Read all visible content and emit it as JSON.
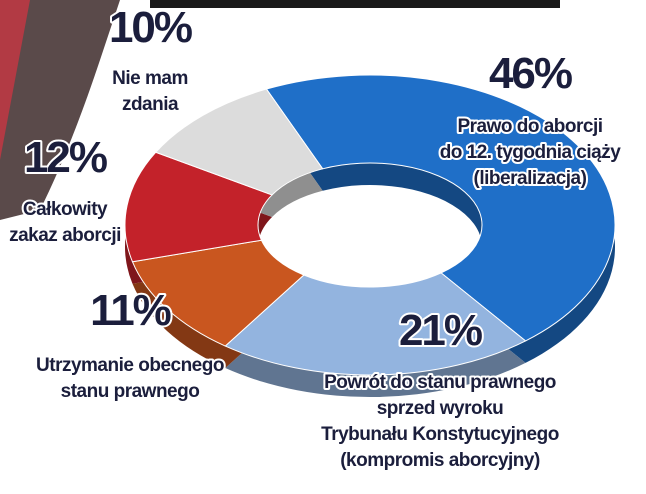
{
  "chart_data": {
    "type": "donut",
    "categories": [
      [
        "Prawo do aborcji",
        "do 12. tygodnia ciąży",
        "(liberalizacja)"
      ],
      [
        "Powrót do stanu prawnego",
        "sprzed wyroku",
        "Trybunału Konstytucyjnego",
        "(kompromis aborcyjny)"
      ],
      [
        "Utrzymanie obecnego",
        "stanu prawnego"
      ],
      [
        "Całkowity",
        "zakaz aborcji"
      ],
      [
        "Nie mam",
        "zdania"
      ]
    ],
    "values": [
      46,
      21,
      11,
      12,
      10
    ],
    "value_labels": [
      "46%",
      "21%",
      "11%",
      "12%",
      "10%"
    ],
    "colors": [
      "#1f6fc8",
      "#93b4df",
      "#c9561f",
      "#c3222a",
      "#dcdcdc"
    ]
  }
}
